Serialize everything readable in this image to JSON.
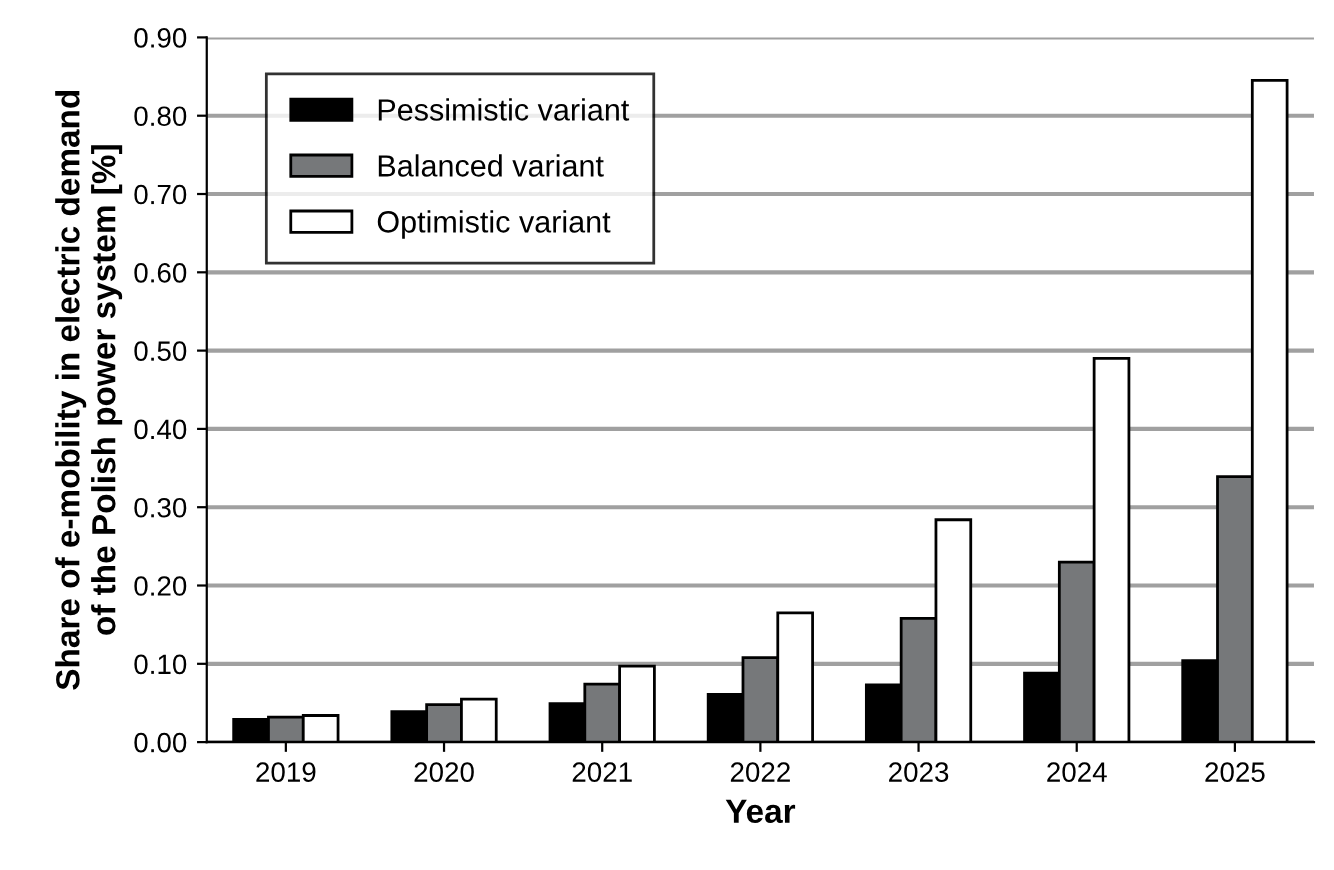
{
  "chart_data": {
    "type": "bar",
    "xlabel": "Year",
    "ylabel": "Share of e-mobility in electric demand\nof the Polish power system [%]",
    "categories": [
      "2019",
      "2020",
      "2021",
      "2022",
      "2023",
      "2024",
      "2025"
    ],
    "series": [
      {
        "name": "Pessimistic variant",
        "color": "#000000",
        "values": [
          0.029,
          0.039,
          0.049,
          0.061,
          0.073,
          0.088,
          0.104
        ]
      },
      {
        "name": "Balanced variant",
        "color": "#76787a",
        "values": [
          0.032,
          0.048,
          0.074,
          0.108,
          0.158,
          0.23,
          0.339
        ]
      },
      {
        "name": "Optimistic variant",
        "color": "#ffffff",
        "values": [
          0.034,
          0.055,
          0.097,
          0.165,
          0.284,
          0.49,
          0.845
        ]
      }
    ],
    "ylim": [
      0,
      0.9
    ],
    "yticks": [
      {
        "value": 0,
        "label": "0.00"
      },
      {
        "value": 0.1,
        "label": "0.10"
      },
      {
        "value": 0.2,
        "label": "0.20"
      },
      {
        "value": 0.3,
        "label": "0.30"
      },
      {
        "value": 0.4,
        "label": "0.40"
      },
      {
        "value": 0.5,
        "label": "0.50"
      },
      {
        "value": 0.6,
        "label": "0.60"
      },
      {
        "value": 0.7,
        "label": "0.70"
      },
      {
        "value": 0.8,
        "label": "0.80"
      },
      {
        "value": 0.9,
        "label": "0.90"
      }
    ],
    "grid": "y",
    "legend": "top left"
  }
}
